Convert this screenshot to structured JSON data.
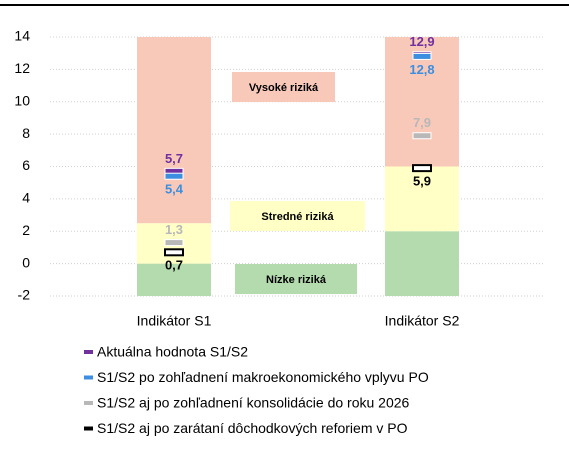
{
  "chart_data": {
    "type": "range_markers",
    "categories": [
      "Indikátor S1",
      "Indikátor S2"
    ],
    "ylim": [
      -2,
      14
    ],
    "yticks": [
      -2,
      0,
      2,
      4,
      6,
      8,
      10,
      12,
      14
    ],
    "grid": true,
    "zones": [
      {
        "name": "Nízke riziká",
        "color": "#b4dbae",
        "values": [
          [
            -2,
            0
          ],
          [
            -2,
            2
          ]
        ]
      },
      {
        "name": "Stredné riziká",
        "color": "#ffffc6",
        "values": [
          [
            0,
            2.5
          ],
          [
            2,
            6
          ]
        ]
      },
      {
        "name": "Vysoké riziká",
        "color": "#f8c9b9",
        "values": [
          [
            2.5,
            14
          ],
          [
            6,
            14
          ]
        ]
      }
    ],
    "series": [
      {
        "name": "Aktuálna hodnota S1/S2",
        "color": "#7030a0",
        "values": [
          5.7,
          12.9
        ],
        "value_labels": [
          "5,7",
          "12,9"
        ]
      },
      {
        "name": "S1/S2 po zohľadnení makroekonomického vplyvu PO",
        "color": "#3b8ee0",
        "values": [
          5.4,
          12.8
        ],
        "value_labels": [
          "5,4",
          "12,8"
        ]
      },
      {
        "name": "S1/S2 aj po zohľadnení konsolidácie do roku 2026",
        "color": "#b8b8b8",
        "values": [
          1.3,
          7.9
        ],
        "value_labels": [
          "1,3",
          "7,9"
        ]
      },
      {
        "name": "S1/S2 aj po zarátaní dôchodkových reforiem v PO",
        "color": "#000000",
        "values": [
          0.7,
          5.9
        ],
        "value_labels": [
          "0,7",
          "5,9"
        ]
      }
    ],
    "legend": "bottom-left"
  }
}
